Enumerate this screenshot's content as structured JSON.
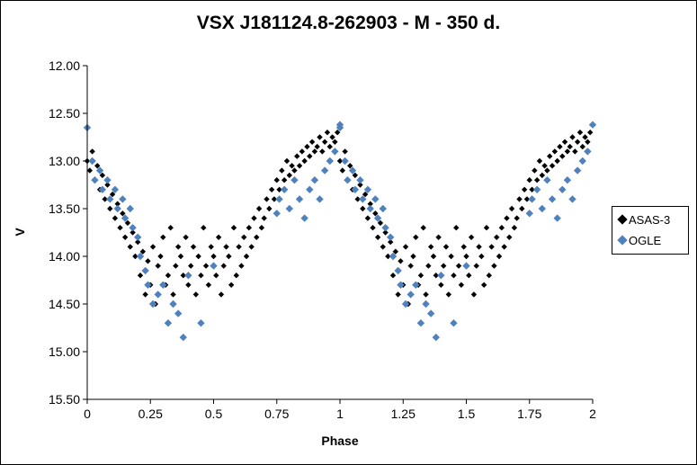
{
  "chart_data": {
    "type": "scatter",
    "title": "VSX J181124.8-262903  - M - 350 d.",
    "xlabel": "Phase",
    "ylabel": "V",
    "xlim": [
      0,
      2
    ],
    "ylim": [
      15.5,
      12.0
    ],
    "y_inverted": true,
    "x_ticks": [
      "0",
      "0.25",
      "0.5",
      "0.75",
      "1",
      "1.25",
      "1.5",
      "1.75",
      "2"
    ],
    "y_ticks": [
      "12.00",
      "12.50",
      "13.00",
      "13.50",
      "14.00",
      "14.50",
      "15.00",
      "15.50"
    ],
    "grid": false,
    "legend_position": "right",
    "series": [
      {
        "name": "ASAS-3",
        "color": "#000000",
        "marker": "diamond",
        "x": [
          0.0,
          0.01,
          0.02,
          0.03,
          0.04,
          0.05,
          0.06,
          0.07,
          0.08,
          0.09,
          0.1,
          0.11,
          0.12,
          0.13,
          0.14,
          0.15,
          0.16,
          0.17,
          0.18,
          0.19,
          0.2,
          0.21,
          0.22,
          0.23,
          0.24,
          0.25,
          0.26,
          0.27,
          0.28,
          0.29,
          0.3,
          0.31,
          0.32,
          0.33,
          0.34,
          0.35,
          0.36,
          0.37,
          0.38,
          0.39,
          0.4,
          0.41,
          0.42,
          0.43,
          0.44,
          0.45,
          0.46,
          0.47,
          0.48,
          0.49,
          0.5,
          0.51,
          0.52,
          0.53,
          0.54,
          0.55,
          0.56,
          0.57,
          0.58,
          0.59,
          0.6,
          0.61,
          0.62,
          0.63,
          0.64,
          0.65,
          0.66,
          0.67,
          0.68,
          0.69,
          0.7,
          0.71,
          0.72,
          0.73,
          0.74,
          0.75,
          0.76,
          0.77,
          0.78,
          0.79,
          0.8,
          0.81,
          0.82,
          0.83,
          0.84,
          0.85,
          0.86,
          0.87,
          0.88,
          0.89,
          0.9,
          0.91,
          0.92,
          0.93,
          0.94,
          0.95,
          0.96,
          0.97,
          0.98,
          0.99
        ],
        "y": [
          13.0,
          13.1,
          12.9,
          13.2,
          13.05,
          13.3,
          13.15,
          13.4,
          13.25,
          13.5,
          13.35,
          13.6,
          13.45,
          13.7,
          13.55,
          13.8,
          13.65,
          13.9,
          13.75,
          14.0,
          13.85,
          14.2,
          13.95,
          14.4,
          14.05,
          14.3,
          13.9,
          14.5,
          14.1,
          14.0,
          13.8,
          14.3,
          14.2,
          13.7,
          14.4,
          14.1,
          13.9,
          14.0,
          14.2,
          13.8,
          14.3,
          14.1,
          13.9,
          14.4,
          14.0,
          14.2,
          13.7,
          14.1,
          14.3,
          13.9,
          14.0,
          14.2,
          13.8,
          14.4,
          14.1,
          13.9,
          14.0,
          14.3,
          13.7,
          14.2,
          13.9,
          14.1,
          13.8,
          14.0,
          13.7,
          13.9,
          13.6,
          13.8,
          13.5,
          13.7,
          13.6,
          13.4,
          13.5,
          13.3,
          13.4,
          13.2,
          13.3,
          13.1,
          13.2,
          13.0,
          13.15,
          13.05,
          13.1,
          12.95,
          13.05,
          12.9,
          13.0,
          12.85,
          12.95,
          12.8,
          12.9,
          12.85,
          12.75,
          12.9,
          12.8,
          12.7,
          12.85,
          12.75,
          12.8,
          12.7
        ]
      },
      {
        "name": "OGLE",
        "color": "#4F81BD",
        "marker": "diamond",
        "x": [
          0.0,
          0.02,
          0.03,
          0.05,
          0.06,
          0.08,
          0.09,
          0.11,
          0.12,
          0.14,
          0.15,
          0.17,
          0.18,
          0.2,
          0.21,
          0.23,
          0.24,
          0.26,
          0.28,
          0.3,
          0.32,
          0.34,
          0.36,
          0.38,
          0.4,
          0.45,
          0.5,
          0.75,
          0.76,
          0.78,
          0.8,
          0.82,
          0.84,
          0.86,
          0.88,
          0.9,
          0.92,
          0.94,
          0.96,
          0.98,
          1.0
        ],
        "y": [
          12.65,
          13.0,
          13.2,
          13.1,
          13.3,
          13.2,
          13.4,
          13.3,
          13.5,
          13.4,
          13.6,
          13.5,
          13.7,
          13.8,
          14.0,
          14.15,
          14.3,
          14.5,
          14.4,
          14.3,
          14.7,
          14.5,
          14.6,
          14.85,
          14.2,
          14.7,
          14.1,
          13.55,
          13.4,
          13.3,
          13.5,
          13.2,
          13.4,
          13.6,
          13.3,
          13.2,
          13.4,
          13.1,
          13.0,
          12.9,
          12.62
        ]
      }
    ]
  },
  "legend": {
    "items": [
      {
        "label": "ASAS-3",
        "color": "#000000"
      },
      {
        "label": "OGLE",
        "color": "#4F81BD"
      }
    ]
  }
}
